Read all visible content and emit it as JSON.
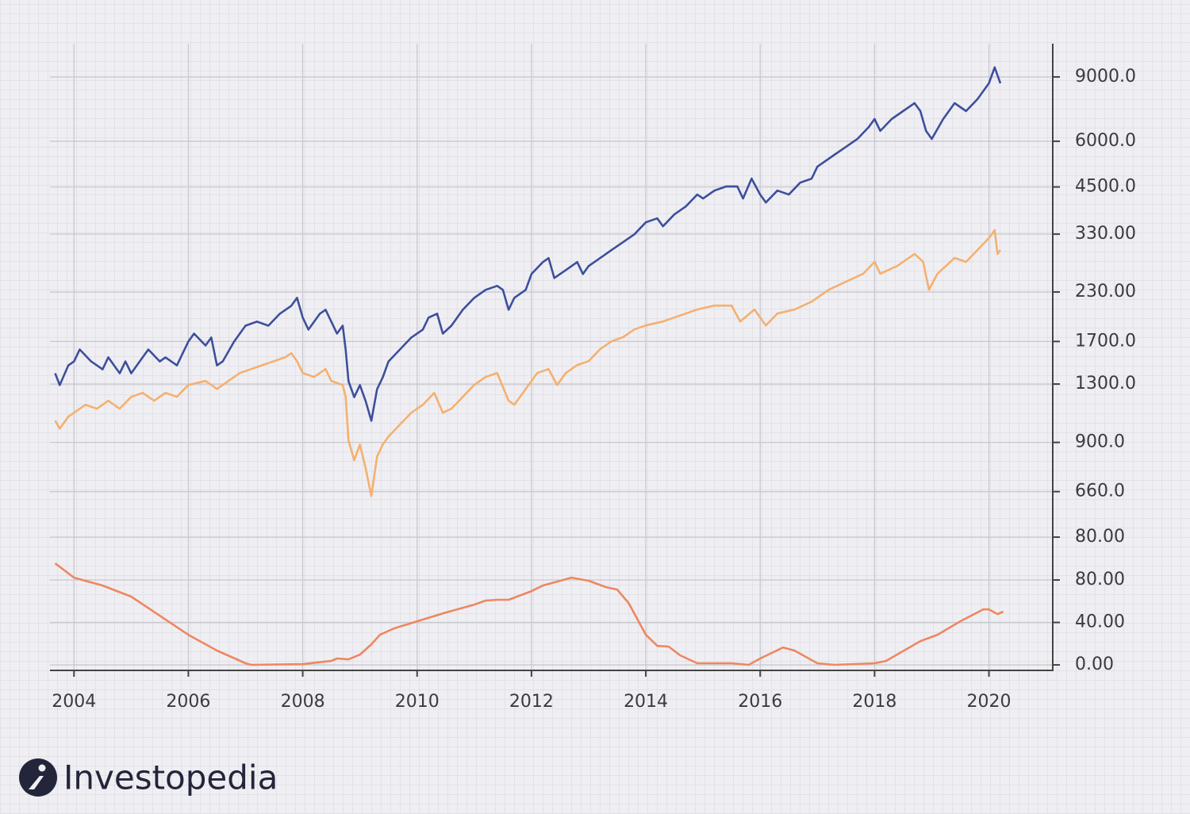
{
  "chart_data": [
    {
      "type": "line",
      "log": true,
      "xlim": [
        2003.58,
        2021.13
      ],
      "ylim": [
        214,
        11100
      ],
      "yticks": [
        {
          "value": 9000,
          "label": "9000.0"
        },
        {
          "value": 6000,
          "label": "6000.0"
        },
        {
          "value": 4500,
          "label": "4500.0"
        },
        {
          "value": 1700,
          "label": "1700.0"
        },
        {
          "value": 1300,
          "label": "1300.0"
        },
        {
          "value": 900,
          "label": "900.0"
        },
        {
          "value": 660,
          "label": "660.0"
        }
      ],
      "x": [
        2003.67,
        2003.75,
        2003.9,
        2004.0,
        2004.1,
        2004.3,
        2004.5,
        2004.6,
        2004.8,
        2004.9,
        2005.0,
        2005.2,
        2005.3,
        2005.5,
        2005.6,
        2005.8,
        2006.0,
        2006.1,
        2006.3,
        2006.4,
        2006.5,
        2006.6,
        2006.8,
        2007.0,
        2007.2,
        2007.4,
        2007.6,
        2007.8,
        2007.9,
        2008.0,
        2008.1,
        2008.3,
        2008.4,
        2008.5,
        2008.6,
        2008.7,
        2008.75,
        2008.8,
        2008.9,
        2009.0,
        2009.1,
        2009.2,
        2009.3,
        2009.4,
        2009.5,
        2009.7,
        2009.9,
        2010.1,
        2010.2,
        2010.35,
        2010.45,
        2010.6,
        2010.8,
        2011.0,
        2011.2,
        2011.4,
        2011.5,
        2011.6,
        2011.7,
        2011.9,
        2012.0,
        2012.2,
        2012.3,
        2012.4,
        2012.6,
        2012.8,
        2012.9,
        2013.0,
        2013.2,
        2013.4,
        2013.6,
        2013.8,
        2014.0,
        2014.2,
        2014.3,
        2014.5,
        2014.7,
        2014.9,
        2015.0,
        2015.2,
        2015.4,
        2015.6,
        2015.7,
        2015.85,
        2016.0,
        2016.1,
        2016.3,
        2016.5,
        2016.7,
        2016.9,
        2017.0,
        2017.3,
        2017.5,
        2017.7,
        2017.9,
        2018.0,
        2018.1,
        2018.3,
        2018.5,
        2018.7,
        2018.8,
        2018.9,
        2019.0,
        2019.2,
        2019.4,
        2019.5,
        2019.6,
        2019.8,
        2020.0,
        2020.1,
        2020.15,
        2020.2
      ],
      "series": [
        {
          "color": "#3d4f9c",
          "values": [
            1391,
            1291,
            1462,
            1499,
            1616,
            1499,
            1426,
            1538,
            1391,
            1499,
            1391,
            1538,
            1616,
            1499,
            1538,
            1462,
            1699,
            1786,
            1657,
            1743,
            1462,
            1499,
            1699,
            1878,
            1926,
            1878,
            2025,
            2129,
            2238,
            1976,
            1832,
            2025,
            2076,
            1926,
            1786,
            1878,
            1616,
            1323,
            1197,
            1291,
            1167,
            1031,
            1258,
            1357,
            1499,
            1616,
            1743,
            1832,
            1976,
            2025,
            1786,
            1878,
            2076,
            2238,
            2354,
            2413,
            2354,
            2076,
            2238,
            2354,
            2600,
            2803,
            2874,
            2536,
            2666,
            2803,
            2600,
            2734,
            2874,
            3023,
            3177,
            3340,
            3601,
            3692,
            3513,
            3785,
            3979,
            4290,
            4185,
            4399,
            4511,
            4511,
            4185,
            4743,
            4290,
            4080,
            4399,
            4290,
            4625,
            4743,
            5113,
            5512,
            5794,
            6091,
            6566,
            6905,
            6404,
            6905,
            7259,
            7630,
            7259,
            6404,
            6091,
            6905,
            7630,
            7442,
            7259,
            7824,
            8646,
            9557,
            9090,
            8646
          ]
        }
      ]
    },
    {
      "type": "line",
      "log": true,
      "xlim": [
        2003.58,
        2021.13
      ],
      "ylim": [
        21.7,
        1083
      ],
      "yticks": [
        {
          "value": 330,
          "label": "330.00"
        },
        {
          "value": 230,
          "label": "230.00"
        }
      ],
      "x": [
        2003.67,
        2003.75,
        2003.9,
        2004.0,
        2004.2,
        2004.4,
        2004.6,
        2004.8,
        2005.0,
        2005.2,
        2005.4,
        2005.6,
        2005.8,
        2006.0,
        2006.3,
        2006.5,
        2006.7,
        2006.9,
        2007.1,
        2007.3,
        2007.5,
        2007.7,
        2007.8,
        2007.9,
        2008.0,
        2008.2,
        2008.4,
        2008.5,
        2008.7,
        2008.75,
        2008.8,
        2008.9,
        2009.0,
        2009.1,
        2009.2,
        2009.3,
        2009.4,
        2009.5,
        2009.7,
        2009.9,
        2010.1,
        2010.3,
        2010.45,
        2010.6,
        2010.8,
        2011.0,
        2011.2,
        2011.4,
        2011.6,
        2011.7,
        2011.9,
        2012.1,
        2012.3,
        2012.45,
        2012.6,
        2012.8,
        2013.0,
        2013.2,
        2013.4,
        2013.6,
        2013.8,
        2014.0,
        2014.3,
        2014.5,
        2014.7,
        2014.9,
        2015.2,
        2015.5,
        2015.65,
        2015.9,
        2016.0,
        2016.1,
        2016.3,
        2016.6,
        2016.9,
        2017.2,
        2017.5,
        2017.8,
        2018.0,
        2018.1,
        2018.4,
        2018.7,
        2018.85,
        2018.95,
        2019.1,
        2019.4,
        2019.6,
        2019.8,
        2020.0,
        2020.1,
        2020.15,
        2020.2
      ],
      "series": [
        {
          "color": "#f5b06e",
          "values": [
            103.1,
            98.1,
            105.6,
            108.3,
            113.8,
            111.0,
            116.7,
            111.0,
            119.6,
            122.6,
            116.7,
            122.6,
            119.6,
            128.8,
            132.0,
            125.6,
            132.0,
            138.7,
            142.2,
            145.8,
            149.4,
            153.2,
            157.0,
            149.4,
            138.7,
            135.4,
            142.2,
            132.0,
            128.8,
            119.6,
            91.1,
            80.5,
            88.8,
            76.6,
            64.4,
            82.4,
            88.8,
            93.3,
            100.6,
            108.3,
            113.8,
            122.6,
            108.3,
            111.0,
            119.6,
            128.8,
            135.4,
            138.7,
            116.7,
            113.8,
            125.6,
            138.7,
            142.2,
            128.8,
            138.7,
            145.8,
            149.4,
            161.0,
            169.1,
            173.4,
            182.1,
            186.7,
            191.4,
            196.2,
            201.1,
            206.2,
            211.3,
            211.3,
            191.4,
            206.2,
            196.2,
            186.7,
            201.1,
            206.2,
            216.6,
            233.3,
            245.2,
            257.6,
            277.5,
            257.6,
            270.7,
            291.6,
            277.5,
            233.3,
            257.6,
            284.5,
            277.5,
            298.9,
            321.9,
            338.3,
            291.6,
            298.9
          ]
        }
      ]
    },
    {
      "type": "line",
      "log": false,
      "xlim": [
        2003.58,
        2021.13
      ],
      "ylim": [
        -5.2,
        585.4
      ],
      "yticks": [
        {
          "value": 80,
          "label": "80.00"
        },
        {
          "value": 40,
          "label": "40.00"
        },
        {
          "value": 0,
          "label": "0.00"
        }
      ],
      "annotations": [
        "80.00"
      ],
      "xticks": [
        2004,
        2006,
        2008,
        2010,
        2012,
        2014,
        2016,
        2018,
        2020
      ],
      "x": [
        2003.67,
        2004.0,
        2004.5,
        2005.0,
        2006.0,
        2006.5,
        2007.0,
        2007.1,
        2008.0,
        2008.5,
        2008.6,
        2008.8,
        2009.0,
        2009.2,
        2009.35,
        2009.6,
        2010.0,
        2010.5,
        2011.0,
        2011.2,
        2011.4,
        2011.6,
        2012.0,
        2012.2,
        2012.7,
        2013.0,
        2013.3,
        2013.5,
        2013.7,
        2014.0,
        2014.2,
        2014.4,
        2014.6,
        2014.9,
        2015.5,
        2015.8,
        2016.0,
        2016.4,
        2016.6,
        2017.0,
        2017.3,
        2018.0,
        2018.2,
        2018.8,
        2019.1,
        2019.5,
        2019.9,
        2020.0,
        2020.15,
        2020.25
      ],
      "series": [
        {
          "color": "#ee8760",
          "values": [
            95.7,
            82.2,
            74.8,
            64.3,
            28.4,
            13.5,
            1.5,
            0,
            0.7,
            3.7,
            6.0,
            5.2,
            9.7,
            19.4,
            28.4,
            34.4,
            41.1,
            49.3,
            56.8,
            60.6,
            61.3,
            61.3,
            69.5,
            74.8,
            82.2,
            79.3,
            73.3,
            71.0,
            58.3,
            28.4,
            17.9,
            17.2,
            9.0,
            1.5,
            1.5,
            0,
            6.0,
            16.4,
            13.5,
            1.5,
            0,
            1.5,
            3.7,
            22.4,
            28.4,
            41.1,
            52.3,
            52.3,
            47.9,
            50.1
          ]
        }
      ]
    }
  ],
  "watermark": "Investopedia"
}
